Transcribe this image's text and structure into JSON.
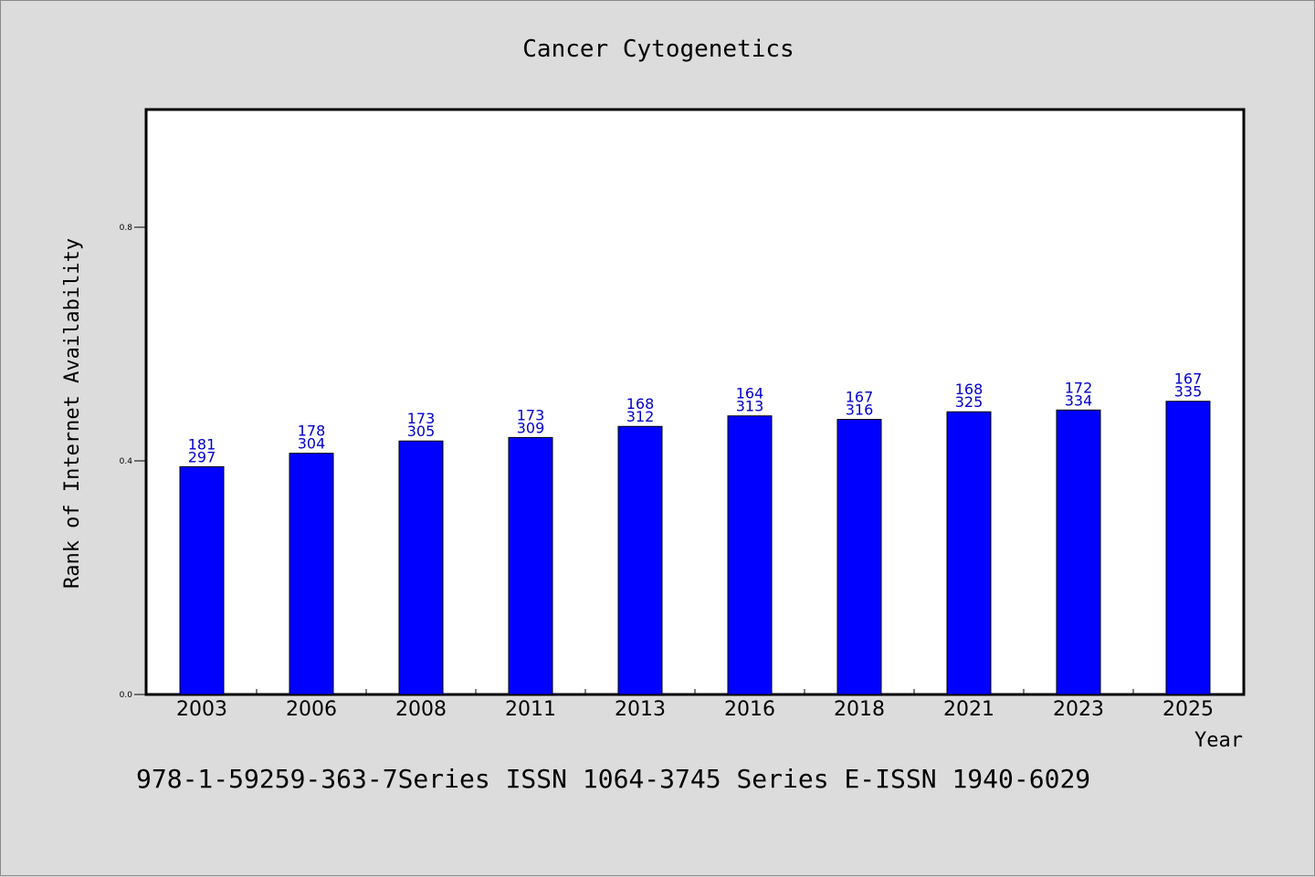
{
  "chart_data": {
    "type": "bar",
    "title": "Cancer Cytogenetics",
    "xlabel": "Year",
    "ylabel": "Rank of Internet Availability",
    "footer": "978-1-59259-363-7Series ISSN 1064-3745 Series E-ISSN 1940-6029",
    "categories": [
      "2003",
      "2006",
      "2008",
      "2011",
      "2013",
      "2016",
      "2018",
      "2021",
      "2023",
      "2025"
    ],
    "values": [
      0.39,
      0.413,
      0.434,
      0.44,
      0.459,
      0.477,
      0.471,
      0.484,
      0.487,
      0.502
    ],
    "label_top": [
      "181",
      "178",
      "173",
      "173",
      "168",
      "164",
      "167",
      "168",
      "172",
      "167"
    ],
    "label_bottom": [
      "297",
      "304",
      "305",
      "309",
      "312",
      "313",
      "316",
      "325",
      "334",
      "335"
    ],
    "yticks": [
      0.0,
      0.4,
      0.8
    ],
    "ytick_labels": [
      "0.0",
      "0.4",
      "0.8"
    ],
    "ylim": [
      0,
      1.0
    ],
    "grid": false,
    "legend": "none",
    "bar_color": "#0000ff",
    "label_color": "#0000cc"
  }
}
